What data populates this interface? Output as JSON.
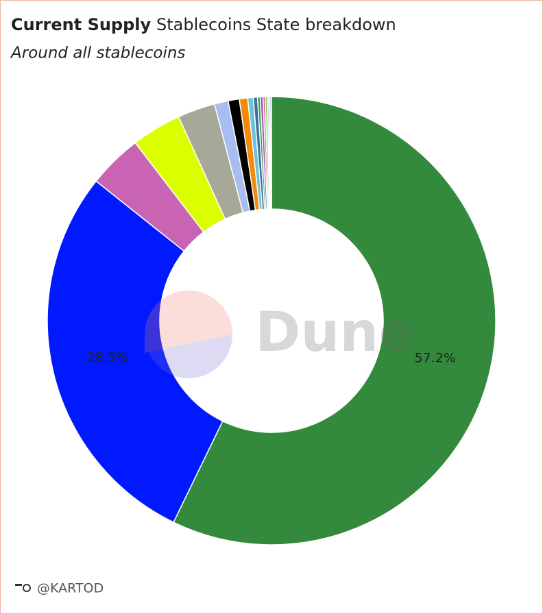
{
  "chart_data": {
    "type": "pie",
    "donut": true,
    "title": "Current Supply",
    "subtitle": "Stablecoins State breakdown",
    "description": "Around all stablecoins",
    "values": [
      57.2,
      28.5,
      3.9,
      3.6,
      2.7,
      1.0,
      0.8,
      0.6,
      0.4,
      0.3,
      0.2,
      0.2,
      0.15,
      0.15,
      0.1,
      0.1,
      0.1
    ],
    "value_labels": [
      "57.2%",
      "28.5%",
      null,
      null,
      null,
      null,
      null,
      null,
      null,
      null,
      null,
      null,
      null,
      null,
      null,
      null,
      null
    ],
    "colors": [
      "#338a3c",
      "#0019ff",
      "#c963b4",
      "#dcff00",
      "#a6a998",
      "#a8bdf0",
      "#000000",
      "#f28a0c",
      "#6cc3d8",
      "#3e6e9e",
      "#48a057",
      "#8c5cb0",
      "#d05a80",
      "#90c060",
      "#5a8fa8",
      "#c8a040",
      "#7080d0"
    ],
    "watermark": "Dune",
    "footer": "@KARTOD"
  }
}
